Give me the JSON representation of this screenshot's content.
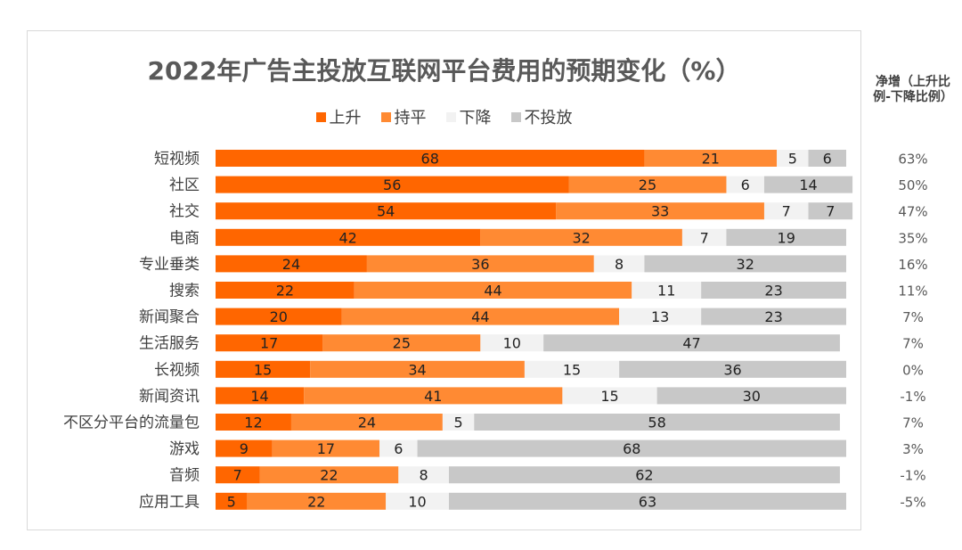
{
  "chart_data": {
    "type": "bar",
    "orientation": "horizontal",
    "stacked": true,
    "title": "2022年广告主投放互联网平台费用的预期变化（%）",
    "categories": [
      "短视频",
      "社区",
      "社交",
      "电商",
      "专业垂类",
      "搜索",
      "新闻聚合",
      "生活服务",
      "长视频",
      "新闻资讯",
      "不区分平台的流量包",
      "游戏",
      "音频",
      "应用工具"
    ],
    "series": [
      {
        "name": "上升",
        "color": "#ff6600",
        "values": [
          68,
          56,
          54,
          42,
          24,
          22,
          20,
          17,
          15,
          14,
          12,
          9,
          7,
          5
        ]
      },
      {
        "name": "持平",
        "color": "#ff8a33",
        "values": [
          21,
          25,
          33,
          32,
          36,
          44,
          44,
          25,
          34,
          41,
          24,
          17,
          22,
          22
        ]
      },
      {
        "name": "下降",
        "color": "#f2f2f2",
        "values": [
          5,
          6,
          7,
          7,
          8,
          11,
          13,
          10,
          15,
          15,
          5,
          6,
          8,
          10
        ]
      },
      {
        "name": "不投放",
        "color": "#c8c8c8",
        "values": [
          6,
          14,
          7,
          19,
          32,
          23,
          23,
          47,
          36,
          30,
          58,
          68,
          62,
          63
        ]
      }
    ],
    "net_header": "净增（上升比例-下降比例）",
    "net_values": [
      "63%",
      "50%",
      "47%",
      "35%",
      "16%",
      "11%",
      "7%",
      "7%",
      "0%",
      "-1%",
      "7%",
      "3%",
      "-1%",
      "-5%"
    ],
    "legend_position": "top-center",
    "xlim": [
      0,
      100
    ]
  }
}
